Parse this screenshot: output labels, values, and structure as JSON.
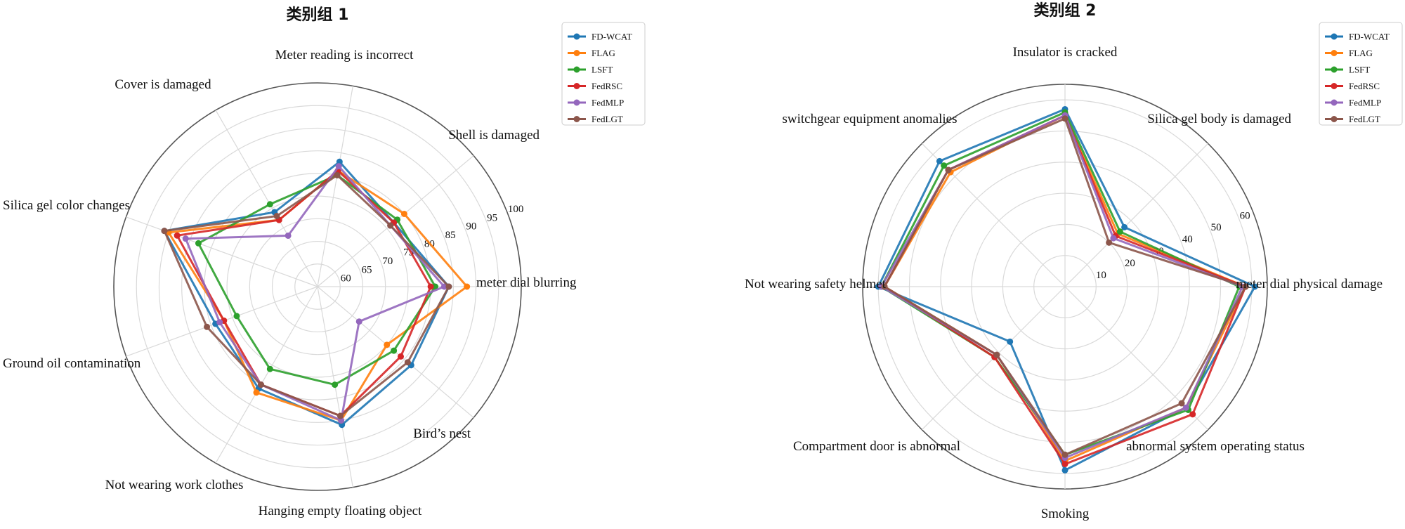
{
  "colors": {
    "FD-WCAT": "#1f77b4",
    "FLAG": "#ff7f0e",
    "LSFT": "#2ca02c",
    "FedRSC": "#d62728",
    "FedMLP": "#9467bd",
    "FedLGT": "#8c564b"
  },
  "chart_data": [
    {
      "type": "radar",
      "title": "类别组 1",
      "categories": [
        "meter dial blurring",
        "Shell is damaged",
        "Meter reading is incorrect",
        "Cover is damaged",
        "Silica gel color changes",
        "Ground oil contamination",
        "Not wearing work clothes",
        "Hanging empty floating object",
        "Bird’s nest"
      ],
      "rlim": [
        55,
        100
      ],
      "ticks": [
        60,
        65,
        70,
        75,
        80,
        85,
        90,
        95,
        100
      ],
      "tick_labels": [
        "60",
        "65",
        "70",
        "75",
        "80",
        "85",
        "90",
        "95",
        "100"
      ],
      "legend_position": "top-right",
      "series": [
        {
          "name": "FD-WCAT",
          "values": [
            84,
            77,
            83,
            74,
            91,
            79,
            81,
            86,
            82
          ]
        },
        {
          "name": "FLAG",
          "values": [
            88,
            80,
            81,
            72,
            90,
            77,
            82,
            85,
            75
          ]
        },
        {
          "name": "LSFT",
          "values": [
            81,
            78,
            80,
            76,
            83,
            74,
            76,
            77,
            77
          ]
        },
        {
          "name": "FedRSC",
          "values": [
            80,
            77,
            81,
            72,
            88,
            77,
            80,
            84,
            79
          ]
        },
        {
          "name": "FedMLP",
          "values": [
            83,
            76,
            82,
            68,
            86,
            78,
            80,
            85,
            67
          ]
        },
        {
          "name": "FedLGT",
          "values": [
            84,
            76,
            80,
            73,
            91,
            81,
            80,
            84,
            81
          ]
        }
      ]
    },
    {
      "type": "radar",
      "title": "类别组 2",
      "categories": [
        "meter dial physical damage",
        "Silica gel body is damaged",
        "Insulator is cracked",
        "switchgear equipment anomalies",
        "Not wearing safety helmet",
        "Compartment door is abnormal",
        "Smoking",
        "abnormal system operating status"
      ],
      "rlim": [
        0,
        65
      ],
      "ticks": [
        10,
        20,
        30,
        40,
        50,
        60
      ],
      "tick_labels": [
        "10",
        "20",
        "30",
        "40",
        "50",
        "60"
      ],
      "legend_position": "top-right",
      "series": [
        {
          "name": "FD-WCAT",
          "values": [
            61,
            27,
            57,
            57,
            60,
            25,
            59,
            55
          ]
        },
        {
          "name": "FLAG",
          "values": [
            58,
            24,
            55,
            52,
            58,
            31,
            56,
            55
          ]
        },
        {
          "name": "LSFT",
          "values": [
            56,
            25,
            56,
            55,
            59,
            32,
            54,
            56
          ]
        },
        {
          "name": "FedRSC",
          "values": [
            58,
            23,
            55,
            53,
            58,
            32,
            57,
            58
          ]
        },
        {
          "name": "FedMLP",
          "values": [
            57,
            22,
            55,
            53,
            59,
            31,
            55,
            55
          ]
        },
        {
          "name": "FedLGT",
          "values": [
            58,
            20,
            54,
            53,
            58,
            31,
            54,
            53
          ]
        }
      ]
    }
  ]
}
